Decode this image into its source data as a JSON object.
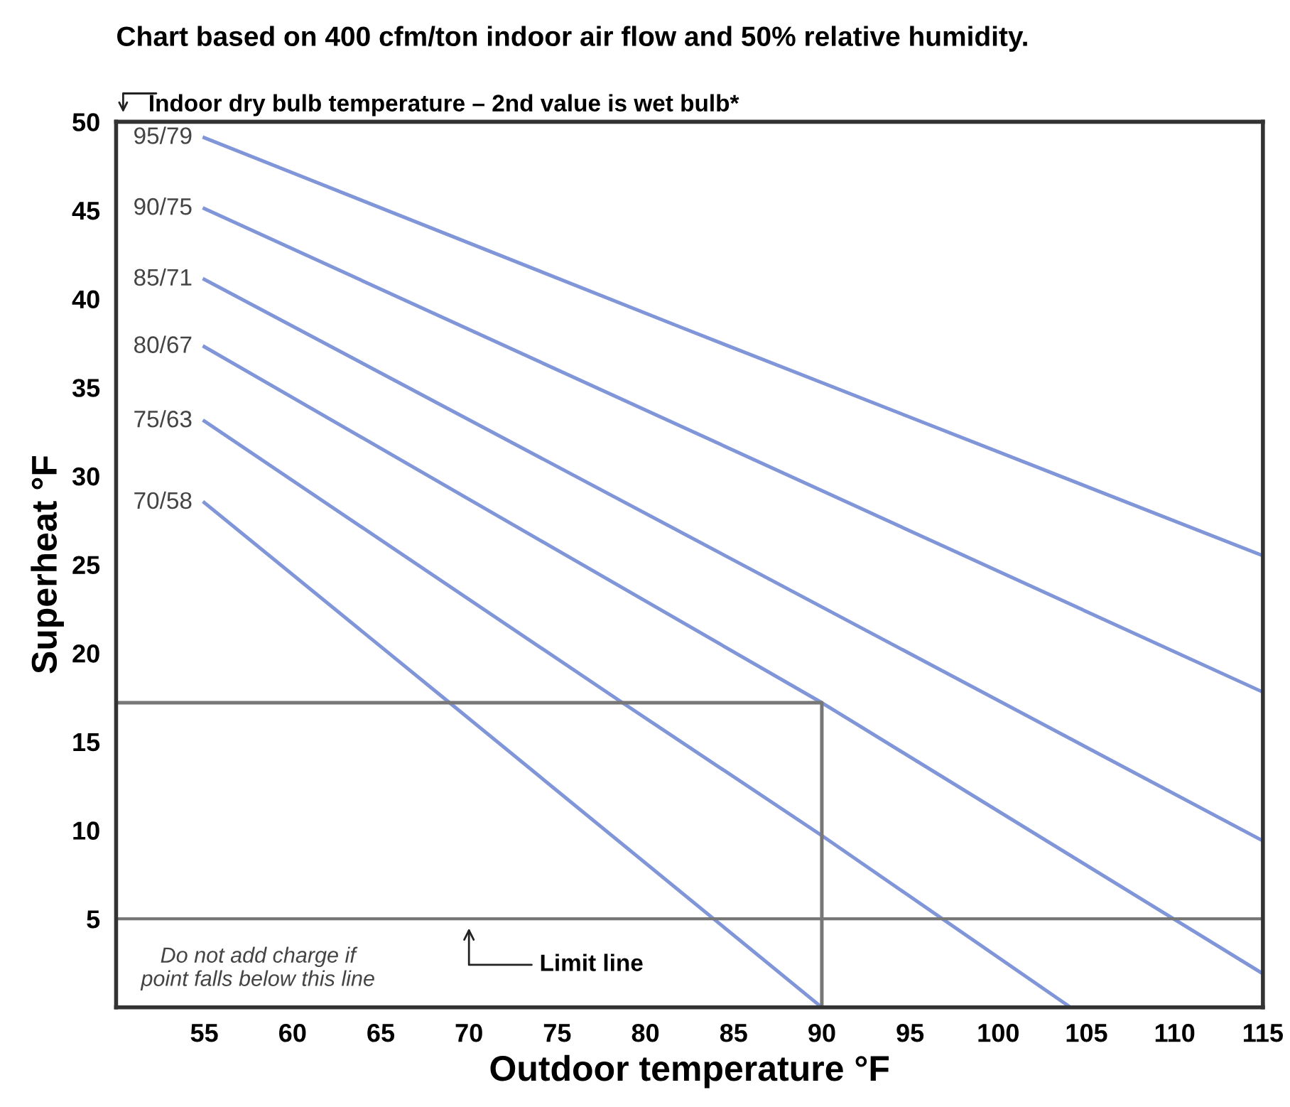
{
  "chart_data": {
    "type": "line",
    "title": "Chart based on 400 cfm/ton indoor air flow and 50% relative humidity.",
    "xlabel": "Outdoor temperature °F",
    "ylabel": "Superheat °F",
    "xlim": [
      50,
      115
    ],
    "ylim": [
      0,
      50
    ],
    "xticks": [
      55,
      60,
      65,
      70,
      75,
      80,
      85,
      90,
      95,
      100,
      105,
      110,
      115
    ],
    "yticks": [
      5,
      10,
      15,
      20,
      25,
      30,
      35,
      40,
      45,
      50
    ],
    "grid": false,
    "legend": false,
    "marker": "none",
    "line_style": "solid",
    "series": [
      {
        "name": "95/79",
        "color": "#8096d8",
        "x": [
          55,
          82,
          115
        ],
        "values": [
          49.1,
          38.4,
          25.5
        ]
      },
      {
        "name": "90/75",
        "color": "#8096d8",
        "x": [
          55,
          115
        ],
        "values": [
          45.1,
          17.8
        ]
      },
      {
        "name": "85/71",
        "color": "#8096d8",
        "x": [
          55,
          115
        ],
        "values": [
          41.1,
          9.4
        ]
      },
      {
        "name": "80/67",
        "color": "#8096d8",
        "x": [
          55,
          90,
          115
        ],
        "values": [
          37.3,
          17.2,
          1.9
        ]
      },
      {
        "name": "75/63",
        "color": "#8096d8",
        "x": [
          55,
          78.7,
          90,
          104.1
        ],
        "values": [
          33.1,
          17.2,
          9.7,
          0
        ]
      },
      {
        "name": "70/58",
        "color": "#8096d8",
        "x": [
          55,
          68.9,
          90
        ],
        "values": [
          28.5,
          17.2,
          0
        ]
      },
      {
        "color": "#777777",
        "x": [
          50,
          90,
          90
        ],
        "values": [
          17.2,
          17.2,
          0
        ]
      }
    ],
    "ref_lines": [
      {
        "axis": "y",
        "value": 5,
        "label": "Limit line",
        "color": "#777777"
      }
    ],
    "annotations": [
      "Indoor dry bulb temperature – 2nd value is wet bulb*",
      "Do not add charge if point falls below this line"
    ]
  }
}
